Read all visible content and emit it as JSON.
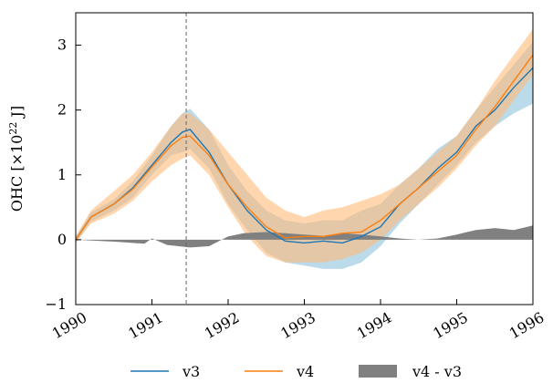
{
  "chart_data": {
    "type": "line",
    "ylabel": "OHC [×10",
    "ylabel_sup": "22",
    "ylabel_tail": " J]",
    "xlim": [
      1990,
      1996
    ],
    "ylim": [
      -1,
      3.5
    ],
    "x_ticks": [
      1990,
      1991,
      1992,
      1993,
      1994,
      1995,
      1996
    ],
    "y_ticks": [
      -1,
      0,
      1,
      2,
      3
    ],
    "x_tick_labels": [
      "1990",
      "1991",
      "1992",
      "1993",
      "1994",
      "1995",
      "1996"
    ],
    "y_tick_labels": [
      "−1",
      "0",
      "1",
      "2",
      "3"
    ],
    "vline_x": 1991.45,
    "grid": false,
    "legend_position": "bottom",
    "legend": [
      {
        "label": "v3",
        "kind": "line",
        "color": "#1f77b4"
      },
      {
        "label": "v4",
        "kind": "line",
        "color": "#ff7f0e"
      },
      {
        "label": "v4 - v3",
        "kind": "area",
        "color": "#808080"
      }
    ],
    "series": [
      {
        "name": "v3",
        "color": "#1f77b4",
        "band_color": "#9ecae1",
        "x": [
          1990,
          1990.2,
          1990.5,
          1990.75,
          1991,
          1991.25,
          1991.4,
          1991.5,
          1991.75,
          1992,
          1992.25,
          1992.5,
          1992.75,
          1993,
          1993.25,
          1993.5,
          1993.75,
          1994,
          1994.25,
          1994.5,
          1994.75,
          1995,
          1995.25,
          1995.5,
          1995.75,
          1996
        ],
        "mean": [
          0,
          0.35,
          0.55,
          0.8,
          1.15,
          1.5,
          1.66,
          1.7,
          1.35,
          0.85,
          0.45,
          0.15,
          -0.02,
          -0.05,
          -0.02,
          -0.05,
          0.05,
          0.2,
          0.55,
          0.8,
          1.1,
          1.35,
          1.75,
          2.0,
          2.35,
          2.65
        ],
        "lower": [
          -0.05,
          0.28,
          0.45,
          0.65,
          1.0,
          1.3,
          1.35,
          1.4,
          1.1,
          0.55,
          0.15,
          -0.2,
          -0.35,
          -0.4,
          -0.45,
          -0.45,
          -0.35,
          -0.1,
          0.25,
          0.55,
          0.85,
          1.15,
          1.5,
          1.75,
          1.95,
          2.1
        ],
        "upper": [
          0.05,
          0.42,
          0.62,
          0.9,
          1.3,
          1.75,
          1.95,
          2.02,
          1.7,
          1.15,
          0.75,
          0.45,
          0.3,
          0.25,
          0.3,
          0.3,
          0.45,
          0.55,
          0.85,
          1.1,
          1.4,
          1.6,
          2.0,
          2.35,
          2.7,
          3.05
        ]
      },
      {
        "name": "v4",
        "color": "#ff7f0e",
        "band_color": "#ffbb78",
        "x": [
          1990,
          1990.2,
          1990.5,
          1990.75,
          1991,
          1991.25,
          1991.4,
          1991.5,
          1991.75,
          1992,
          1992.25,
          1992.5,
          1992.75,
          1993,
          1993.25,
          1993.5,
          1993.75,
          1994,
          1994.25,
          1994.5,
          1994.75,
          1995,
          1995.25,
          1995.5,
          1995.75,
          1996
        ],
        "mean": [
          0,
          0.35,
          0.55,
          0.78,
          1.12,
          1.45,
          1.58,
          1.6,
          1.3,
          0.85,
          0.5,
          0.2,
          0.03,
          0.05,
          0.05,
          0.1,
          0.12,
          0.3,
          0.55,
          0.8,
          1.05,
          1.3,
          1.7,
          2.05,
          2.45,
          2.85
        ],
        "lower": [
          -0.05,
          0.25,
          0.4,
          0.6,
          0.9,
          1.15,
          1.25,
          1.3,
          1.0,
          0.5,
          0.05,
          -0.25,
          -0.35,
          -0.35,
          -0.35,
          -0.3,
          -0.2,
          0.0,
          0.3,
          0.55,
          0.8,
          1.1,
          1.45,
          1.75,
          2.15,
          2.55
        ],
        "upper": [
          0.05,
          0.45,
          0.75,
          1.0,
          1.35,
          1.75,
          1.95,
          1.95,
          1.7,
          1.35,
          1.0,
          0.65,
          0.45,
          0.35,
          0.45,
          0.5,
          0.6,
          0.7,
          0.85,
          1.1,
          1.35,
          1.6,
          2.0,
          2.45,
          2.85,
          3.25
        ]
      },
      {
        "name": "v4 - v3",
        "color": "#808080",
        "x": [
          1990,
          1990.5,
          1990.9,
          1991.0,
          1991.2,
          1991.5,
          1991.75,
          1992,
          1992.2,
          1992.5,
          1992.75,
          1993,
          1993.25,
          1993.5,
          1993.75,
          1994,
          1994.25,
          1994.5,
          1994.75,
          1995,
          1995.25,
          1995.5,
          1995.75,
          1996
        ],
        "values": [
          0,
          -0.03,
          -0.06,
          0.02,
          -0.08,
          -0.12,
          -0.1,
          0.05,
          0.1,
          0.12,
          0.1,
          0.08,
          0.06,
          0.1,
          0.08,
          0.05,
          0.02,
          0.0,
          0.02,
          0.08,
          0.15,
          0.18,
          0.15,
          0.22
        ]
      }
    ]
  }
}
